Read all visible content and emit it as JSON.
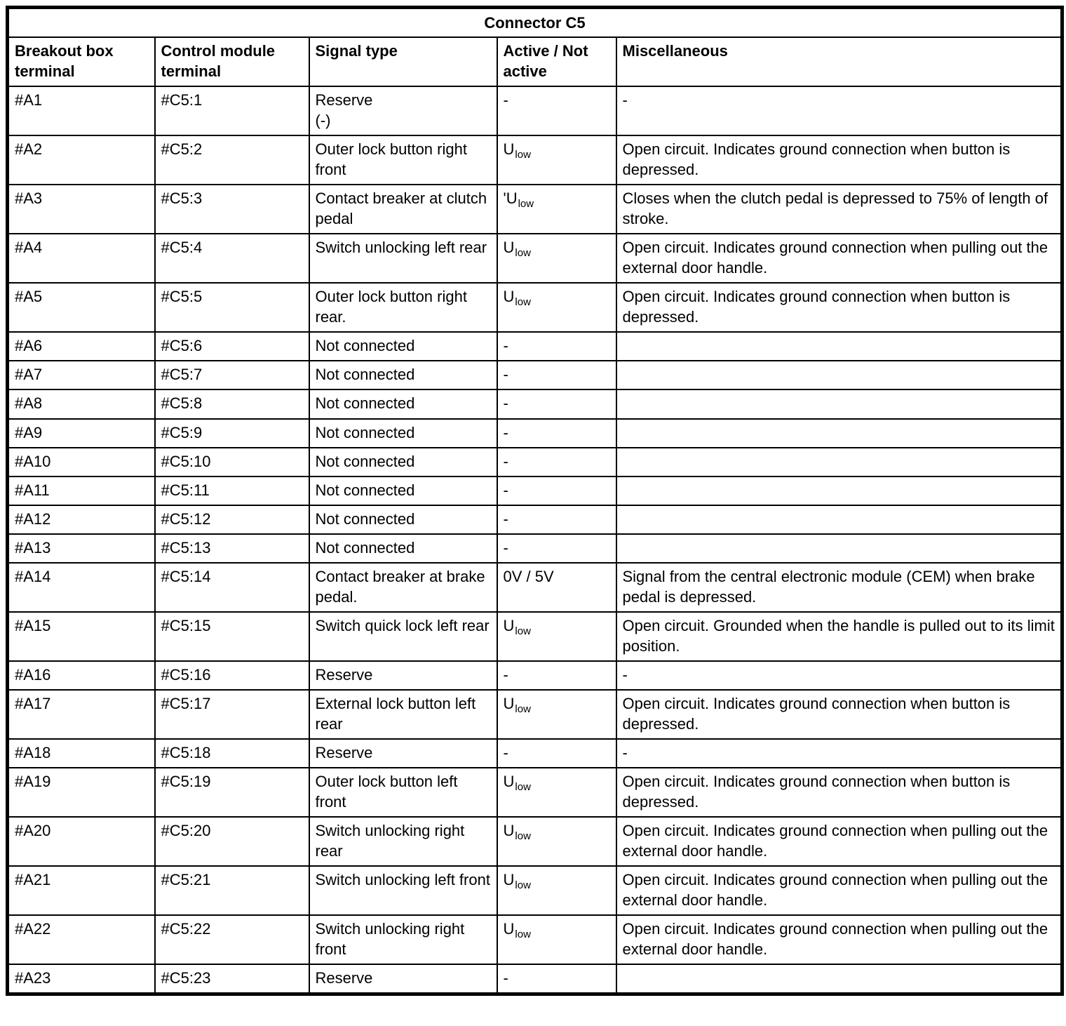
{
  "page": {
    "background_color": "#ffffff",
    "border_color": "#000000"
  },
  "table": {
    "title": "Connector C5",
    "headers": [
      "Breakout box terminal",
      "Control module terminal",
      "Signal type",
      "Active / Not active",
      "Miscellaneous"
    ],
    "rows": [
      {
        "breakout": "#A1",
        "module": "#C5:1",
        "signal": "Reserve\n(-)",
        "active": "-",
        "active_sub": "",
        "misc": "-"
      },
      {
        "breakout": "#A2",
        "module": "#C5:2",
        "signal": "Outer lock button right front",
        "active": "U",
        "active_sub": "low",
        "misc": "Open circuit. Indicates ground connection when button is depressed."
      },
      {
        "breakout": "#A3",
        "module": "#C5:3",
        "signal": "Contact breaker at clutch pedal",
        "active": "'U",
        "active_sub": "low",
        "misc": "Closes when the clutch pedal is depressed to 75% of length of stroke."
      },
      {
        "breakout": "#A4",
        "module": "#C5:4",
        "signal": "Switch unlocking left rear",
        "active": "U",
        "active_sub": "low",
        "misc": "Open circuit. Indicates ground connection when pulling out the external door handle."
      },
      {
        "breakout": "#A5",
        "module": "#C5:5",
        "signal": "Outer lock button right rear.",
        "active": "U",
        "active_sub": "low",
        "misc": "Open circuit. Indicates ground connection when button is depressed."
      },
      {
        "breakout": "#A6",
        "module": "#C5:6",
        "signal": "Not connected",
        "active": "-",
        "active_sub": "",
        "misc": ""
      },
      {
        "breakout": "#A7",
        "module": "#C5:7",
        "signal": "Not connected",
        "active": "-",
        "active_sub": "",
        "misc": ""
      },
      {
        "breakout": "#A8",
        "module": "#C5:8",
        "signal": "Not connected",
        "active": "-",
        "active_sub": "",
        "misc": ""
      },
      {
        "breakout": "#A9",
        "module": "#C5:9",
        "signal": "Not connected",
        "active": "-",
        "active_sub": "",
        "misc": ""
      },
      {
        "breakout": "#A10",
        "module": "#C5:10",
        "signal": "Not connected",
        "active": "-",
        "active_sub": "",
        "misc": ""
      },
      {
        "breakout": "#A11",
        "module": "#C5:11",
        "signal": "Not connected",
        "active": "-",
        "active_sub": "",
        "misc": ""
      },
      {
        "breakout": "#A12",
        "module": "#C5:12",
        "signal": "Not connected",
        "active": "-",
        "active_sub": "",
        "misc": ""
      },
      {
        "breakout": "#A13",
        "module": "#C5:13",
        "signal": "Not connected",
        "active": "-",
        "active_sub": "",
        "misc": ""
      },
      {
        "breakout": "#A14",
        "module": "#C5:14",
        "signal": "Contact breaker at brake pedal.",
        "active": "0V / 5V",
        "active_sub": "",
        "misc": "Signal from the central electronic module (CEM) when brake pedal is depressed."
      },
      {
        "breakout": "#A15",
        "module": "#C5:15",
        "signal": "Switch quick lock left rear",
        "active": "U",
        "active_sub": "low",
        "misc": "Open circuit. Grounded when the handle is pulled out to its limit position."
      },
      {
        "breakout": "#A16",
        "module": "#C5:16",
        "signal": "Reserve",
        "active": "-",
        "active_sub": "",
        "misc": "-"
      },
      {
        "breakout": "#A17",
        "module": "#C5:17",
        "signal": "External lock button left rear",
        "active": "U",
        "active_sub": "low",
        "misc": "Open circuit. Indicates ground connection when button is depressed."
      },
      {
        "breakout": "#A18",
        "module": "#C5:18",
        "signal": "Reserve",
        "active": "-",
        "active_sub": "",
        "misc": "-"
      },
      {
        "breakout": "#A19",
        "module": "#C5:19",
        "signal": "Outer lock button left front",
        "active": "U",
        "active_sub": "low",
        "misc": "Open circuit. Indicates ground connection when button is depressed."
      },
      {
        "breakout": "#A20",
        "module": "#C5:20",
        "signal": "Switch unlocking right rear",
        "active": "U",
        "active_sub": "low",
        "misc": "Open circuit. Indicates ground connection when pulling out the external door handle."
      },
      {
        "breakout": "#A21",
        "module": "#C5:21",
        "signal": "Switch unlocking left front",
        "active": "U",
        "active_sub": "low",
        "misc": "Open circuit. Indicates ground connection when pulling out the external door handle."
      },
      {
        "breakout": "#A22",
        "module": "#C5:22",
        "signal": "Switch unlocking right front",
        "active": "U",
        "active_sub": "low",
        "misc": "Open circuit. Indicates ground connection when pulling out the external door handle."
      },
      {
        "breakout": "#A23",
        "module": "#C5:23",
        "signal": "Reserve",
        "active": "-",
        "active_sub": "",
        "misc": ""
      }
    ]
  }
}
